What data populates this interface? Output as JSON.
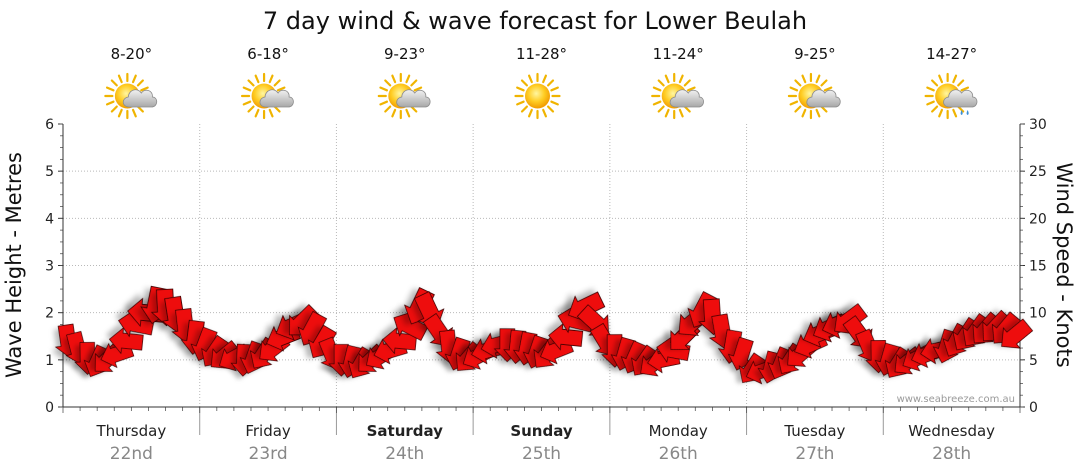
{
  "chart_data": {
    "type": "line",
    "title": "7 day wind & wave forecast for Lower Beulah",
    "ylabel": "Wave Height - Metres",
    "y2label": "Wind Speed - Knots",
    "ylim": [
      0,
      6
    ],
    "y2lim": [
      0,
      30
    ],
    "yticks": [
      "0",
      "1",
      "2",
      "3",
      "4",
      "5",
      "6"
    ],
    "y2ticks": [
      "0",
      "5",
      "10",
      "15",
      "20",
      "25",
      "30"
    ],
    "grid": true,
    "days": [
      {
        "name": "Thursday",
        "date": "22nd",
        "temp": "8-20°",
        "weather": "partly-cloudy",
        "bold": false
      },
      {
        "name": "Friday",
        "date": "23rd",
        "temp": "6-18°",
        "weather": "partly-cloudy",
        "bold": false
      },
      {
        "name": "Saturday",
        "date": "24th",
        "temp": "9-23°",
        "weather": "partly-cloudy",
        "bold": true
      },
      {
        "name": "Sunday",
        "date": "25th",
        "temp": "11-28°",
        "weather": "sunny",
        "bold": true
      },
      {
        "name": "Monday",
        "date": "26th",
        "temp": "11-24°",
        "weather": "partly-cloudy",
        "bold": false
      },
      {
        "name": "Tuesday",
        "date": "27th",
        "temp": "9-25°",
        "weather": "partly-cloudy",
        "bold": false
      },
      {
        "name": "Wednesday",
        "date": "28th",
        "temp": "14-27°",
        "weather": "showers",
        "bold": false
      }
    ],
    "series": [
      {
        "name": "Wind Speed",
        "unit": "knots",
        "color": "#ee1111",
        "values": [
          7.0,
          6.2,
          5.2,
          4.8,
          5.0,
          5.6,
          7.0,
          8.8,
          10.0,
          10.8,
          10.6,
          9.8,
          8.6,
          7.4,
          6.6,
          5.8,
          5.4,
          5.2,
          5.0,
          5.2,
          5.6,
          6.2,
          7.4,
          8.6,
          9.0,
          8.2,
          6.8,
          5.6,
          5.0,
          4.8,
          4.6,
          5.0,
          5.4,
          6.0,
          7.0,
          8.6,
          10.6,
          10.2,
          8.0,
          6.4,
          5.6,
          5.2,
          5.4,
          6.0,
          6.6,
          6.6,
          6.4,
          6.2,
          5.8,
          5.6,
          6.0,
          7.4,
          9.2,
          10.6,
          9.0,
          7.0,
          6.0,
          5.6,
          5.2,
          4.8,
          4.6,
          5.0,
          6.0,
          7.4,
          9.0,
          10.2,
          9.6,
          8.0,
          6.4,
          5.6,
          4.0,
          3.8,
          4.2,
          4.6,
          5.0,
          5.6,
          6.6,
          7.8,
          8.4,
          8.8,
          9.2,
          7.8,
          6.4,
          5.4,
          5.0,
          4.6,
          4.8,
          5.2,
          5.6,
          6.0,
          6.4,
          7.0,
          7.6,
          8.0,
          8.2,
          8.4,
          8.2,
          7.6
        ]
      }
    ]
  },
  "footer": {
    "watermark": "www.seabreeze.com.au"
  },
  "colors": {
    "arrow_fill": "#ee1111",
    "arrow_stroke": "#3a0000",
    "grid": "#b9b9b9",
    "date": "#888888"
  }
}
